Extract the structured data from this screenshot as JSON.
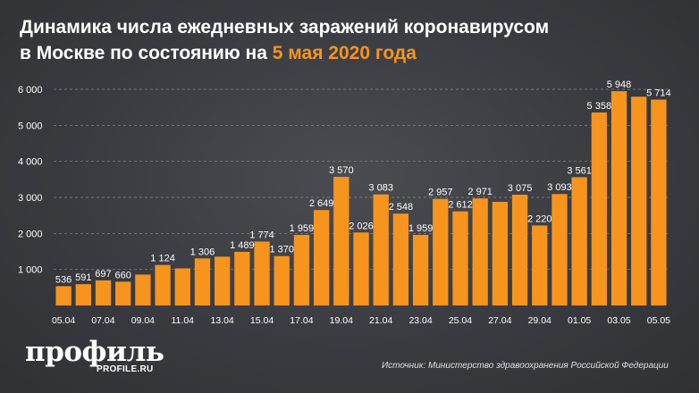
{
  "header": {
    "title_line1": "Динамика числа ежедневных заражений коронавирусом",
    "title_line2_prefix": "в Москве по состоянию на ",
    "title_line2_accent": "5 мая 2020 года"
  },
  "footer": {
    "logo": "профиль",
    "logo_sub": "PROFILE.RU",
    "source": "Источник: Министерство здравоохранения Российской Федерации"
  },
  "colors": {
    "bar": "#f7941d",
    "accent": "#f7941d",
    "text": "#ffffff",
    "grid": "#8a8c90"
  },
  "chart_data": {
    "type": "bar",
    "title": "Динамика числа ежедневных заражений коронавирусом в Москве по состоянию на 5 мая 2020 года",
    "categories": [
      "05.04",
      "06.04",
      "07.04",
      "08.04",
      "09.04",
      "10.04",
      "11.04",
      "12.04",
      "13.04",
      "14.04",
      "15.04",
      "16.04",
      "17.04",
      "18.04",
      "19.04",
      "20.04",
      "21.04",
      "22.04",
      "23.04",
      "24.04",
      "25.04",
      "26.04",
      "27.04",
      "28.04",
      "29.04",
      "30.04",
      "01.05",
      "02.05",
      "03.05",
      "04.05",
      "05.05"
    ],
    "values": [
      536,
      591,
      697,
      660,
      857,
      1124,
      1030,
      1306,
      1355,
      1489,
      1774,
      1370,
      1959,
      2649,
      3570,
      2026,
      3083,
      2548,
      1959,
      2957,
      2612,
      2971,
      2876,
      3075,
      2220,
      3093,
      3561,
      5358,
      5948,
      5795,
      5714
    ],
    "data_labels": [
      "536",
      "591",
      "697",
      "660",
      "",
      "1 124",
      "",
      "1 306",
      "",
      "1 489",
      "1 774",
      "1 370",
      "1 959",
      "2 649",
      "3 570",
      "2 026",
      "3 083",
      "2 548",
      "1 959",
      "2 957",
      "2 612",
      "2 971",
      "",
      "3 075",
      "2 220",
      "3 093",
      "3 561",
      "5 358",
      "5 948",
      "",
      "5 714"
    ],
    "tick_labels_x": [
      "05.04",
      "07.04",
      "09.04",
      "11.04",
      "13.04",
      "15.04",
      "17.04",
      "19.04",
      "21.04",
      "23.04",
      "25.04",
      "27.04",
      "29.04",
      "01.05",
      "03.05",
      "05.05"
    ],
    "yticks": [
      1000,
      2000,
      3000,
      4000,
      5000,
      6000
    ],
    "ytick_labels": [
      "1 000",
      "2 000",
      "3 000",
      "4 000",
      "5 000",
      "6 000"
    ],
    "ylim": [
      0,
      6000
    ],
    "xlabel": "",
    "ylabel": "",
    "grid": true,
    "legend": "none"
  }
}
